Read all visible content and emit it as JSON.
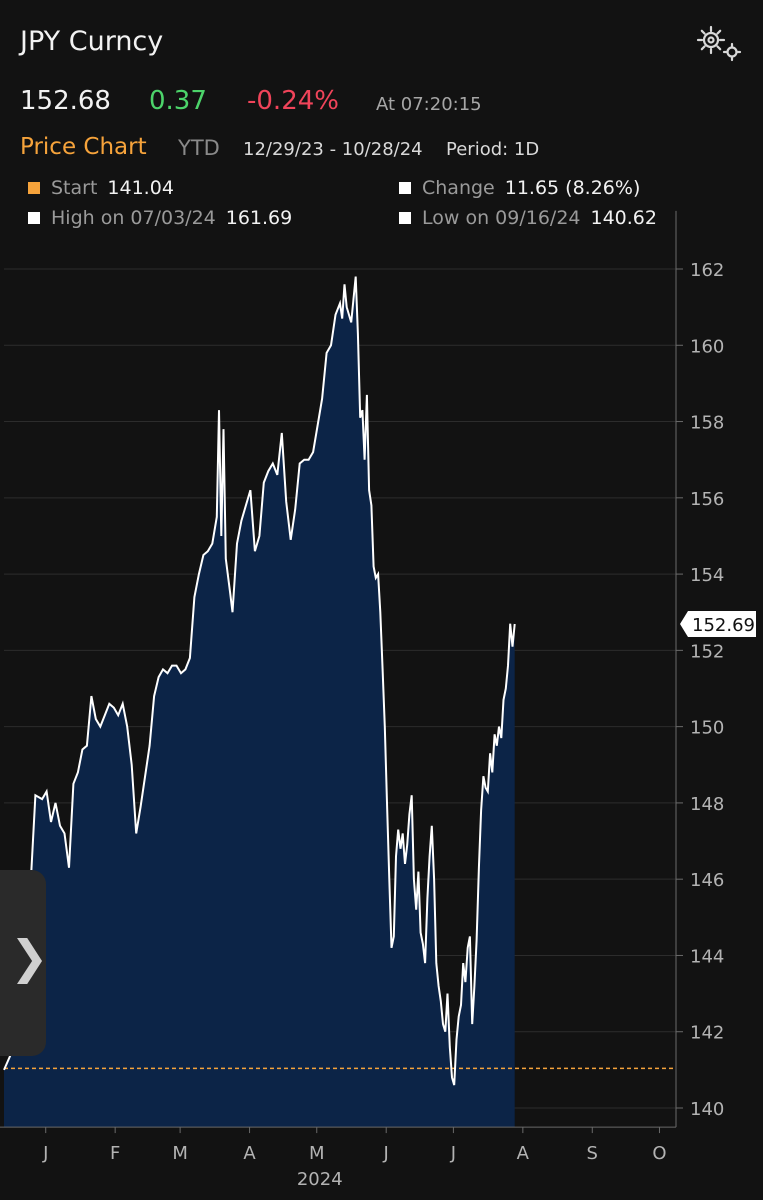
{
  "header": {
    "title": "JPY Curncy",
    "settings_icon": "gears-icon"
  },
  "quote": {
    "last": "152.68",
    "change": "0.37",
    "change_pct": "-0.24%",
    "time": "At 07:20:15",
    "colors": {
      "up": "#4cd36a",
      "down": "#f0445a"
    }
  },
  "chart_header": {
    "title": "Price Chart",
    "range_label": "YTD",
    "dates": "12/29/23 - 10/28/24",
    "period": "Period: 1D"
  },
  "stats": {
    "start_label": "Start",
    "start_value": "141.04",
    "start_color": "#f6a33b",
    "change_label": "Change",
    "change_value": "11.65 (8.26%)",
    "high_label": "High on 07/03/24",
    "high_value": "161.69",
    "low_label": "Low on 09/16/24",
    "low_value": "140.62"
  },
  "side_tab": {
    "icon": "chevron-right-icon",
    "glyph": "❯"
  },
  "chart_data": {
    "type": "area",
    "ylim": [
      139.5,
      163
    ],
    "y_ticks": [
      140,
      142,
      144,
      146,
      148,
      150,
      152,
      154,
      156,
      158,
      160,
      162
    ],
    "x_ticks": [
      {
        "label": "J",
        "day": 3
      },
      {
        "label": "F",
        "day": 34
      },
      {
        "label": "M",
        "day": 63
      },
      {
        "label": "A",
        "day": 94
      },
      {
        "label": "M",
        "day": 124
      },
      {
        "label": "J",
        "day": 155
      },
      {
        "label": "J",
        "day": 185
      },
      {
        "label": "A",
        "day": 216
      },
      {
        "label": "S",
        "day": 247
      },
      {
        "label": "O",
        "day": 277
      }
    ],
    "year_label": "2024",
    "start_value": 141.04,
    "last_value_label": "152.69",
    "colors": {
      "line": "#ffffff",
      "fill": "#0c2447",
      "start_line": "#f6a33b"
    },
    "points": [
      [
        0,
        141.0
      ],
      [
        3,
        141.4
      ],
      [
        6,
        141.8
      ],
      [
        8,
        143.0
      ],
      [
        10,
        145.2
      ],
      [
        12,
        146.0
      ],
      [
        14,
        148.2
      ],
      [
        17,
        148.1
      ],
      [
        19,
        148.3
      ],
      [
        21,
        147.5
      ],
      [
        23,
        148.0
      ],
      [
        25,
        147.4
      ],
      [
        27,
        147.2
      ],
      [
        29,
        146.3
      ],
      [
        31,
        148.5
      ],
      [
        33,
        148.8
      ],
      [
        35,
        149.4
      ],
      [
        37,
        149.5
      ],
      [
        39,
        150.8
      ],
      [
        41,
        150.2
      ],
      [
        43,
        150.0
      ],
      [
        45,
        150.3
      ],
      [
        47,
        150.6
      ],
      [
        49,
        150.5
      ],
      [
        51,
        150.3
      ],
      [
        53,
        150.6
      ],
      [
        55,
        150.0
      ],
      [
        57,
        149.0
      ],
      [
        59,
        147.2
      ],
      [
        61,
        147.9
      ],
      [
        63,
        148.7
      ],
      [
        65,
        149.5
      ],
      [
        67,
        150.8
      ],
      [
        69,
        151.3
      ],
      [
        71,
        151.5
      ],
      [
        73,
        151.4
      ],
      [
        75,
        151.6
      ],
      [
        77,
        151.6
      ],
      [
        79,
        151.4
      ],
      [
        81,
        151.5
      ],
      [
        83,
        151.8
      ],
      [
        85,
        153.4
      ],
      [
        87,
        154.0
      ],
      [
        89,
        154.5
      ],
      [
        91,
        154.6
      ],
      [
        93,
        154.8
      ],
      [
        95,
        155.5
      ],
      [
        96,
        158.3
      ],
      [
        97,
        155.0
      ],
      [
        98,
        157.8
      ],
      [
        99,
        154.4
      ],
      [
        101,
        153.5
      ],
      [
        102,
        153.0
      ],
      [
        104,
        154.8
      ],
      [
        106,
        155.4
      ],
      [
        108,
        155.8
      ],
      [
        110,
        156.2
      ],
      [
        112,
        154.6
      ],
      [
        114,
        155.0
      ],
      [
        116,
        156.4
      ],
      [
        118,
        156.7
      ],
      [
        120,
        156.9
      ],
      [
        122,
        156.6
      ],
      [
        124,
        157.7
      ],
      [
        126,
        155.9
      ],
      [
        128,
        154.9
      ],
      [
        130,
        155.7
      ],
      [
        132,
        156.9
      ],
      [
        134,
        157.0
      ],
      [
        136,
        157.0
      ],
      [
        138,
        157.2
      ],
      [
        140,
        157.9
      ],
      [
        142,
        158.6
      ],
      [
        144,
        159.8
      ],
      [
        146,
        160.0
      ],
      [
        148,
        160.8
      ],
      [
        150,
        161.1
      ],
      [
        151,
        160.7
      ],
      [
        152,
        161.6
      ],
      [
        153,
        161.0
      ],
      [
        155,
        160.6
      ],
      [
        157,
        161.8
      ],
      [
        158,
        160.3
      ],
      [
        159,
        158.1
      ],
      [
        160,
        158.3
      ],
      [
        161,
        157.0
      ],
      [
        162,
        158.7
      ],
      [
        163,
        156.2
      ],
      [
        164,
        155.8
      ],
      [
        165,
        154.2
      ],
      [
        166,
        153.9
      ],
      [
        167,
        154.0
      ],
      [
        168,
        153.0
      ],
      [
        169,
        151.5
      ],
      [
        170,
        150.0
      ],
      [
        171,
        148.0
      ],
      [
        172,
        146.0
      ],
      [
        173,
        144.2
      ],
      [
        174,
        144.5
      ],
      [
        175,
        146.6
      ],
      [
        176,
        147.3
      ],
      [
        177,
        146.8
      ],
      [
        178,
        147.2
      ],
      [
        179,
        146.4
      ],
      [
        180,
        146.9
      ],
      [
        181,
        147.7
      ],
      [
        182,
        148.2
      ],
      [
        183,
        146.0
      ],
      [
        184,
        145.2
      ],
      [
        185,
        146.2
      ],
      [
        186,
        144.6
      ],
      [
        187,
        144.3
      ],
      [
        188,
        143.8
      ],
      [
        189,
        145.5
      ],
      [
        190,
        146.6
      ],
      [
        191,
        147.4
      ],
      [
        192,
        146.0
      ],
      [
        193,
        143.8
      ],
      [
        194,
        143.2
      ],
      [
        195,
        142.8
      ],
      [
        196,
        142.2
      ],
      [
        197,
        142.0
      ],
      [
        198,
        143.0
      ],
      [
        199,
        141.6
      ],
      [
        200,
        140.8
      ],
      [
        201,
        140.6
      ],
      [
        202,
        141.8
      ],
      [
        203,
        142.4
      ],
      [
        204,
        142.7
      ],
      [
        205,
        143.8
      ],
      [
        206,
        143.3
      ],
      [
        207,
        144.2
      ],
      [
        208,
        144.5
      ],
      [
        209,
        142.2
      ],
      [
        210,
        143.2
      ],
      [
        211,
        144.4
      ],
      [
        212,
        146.3
      ],
      [
        213,
        147.8
      ],
      [
        214,
        148.7
      ],
      [
        215,
        148.4
      ],
      [
        216,
        148.3
      ],
      [
        217,
        149.3
      ],
      [
        218,
        148.8
      ],
      [
        219,
        149.8
      ],
      [
        220,
        149.5
      ],
      [
        221,
        150.0
      ],
      [
        222,
        149.7
      ],
      [
        223,
        150.7
      ],
      [
        224,
        151.0
      ],
      [
        225,
        151.6
      ],
      [
        226,
        152.7
      ],
      [
        227,
        152.1
      ],
      [
        228,
        152.69
      ]
    ]
  }
}
